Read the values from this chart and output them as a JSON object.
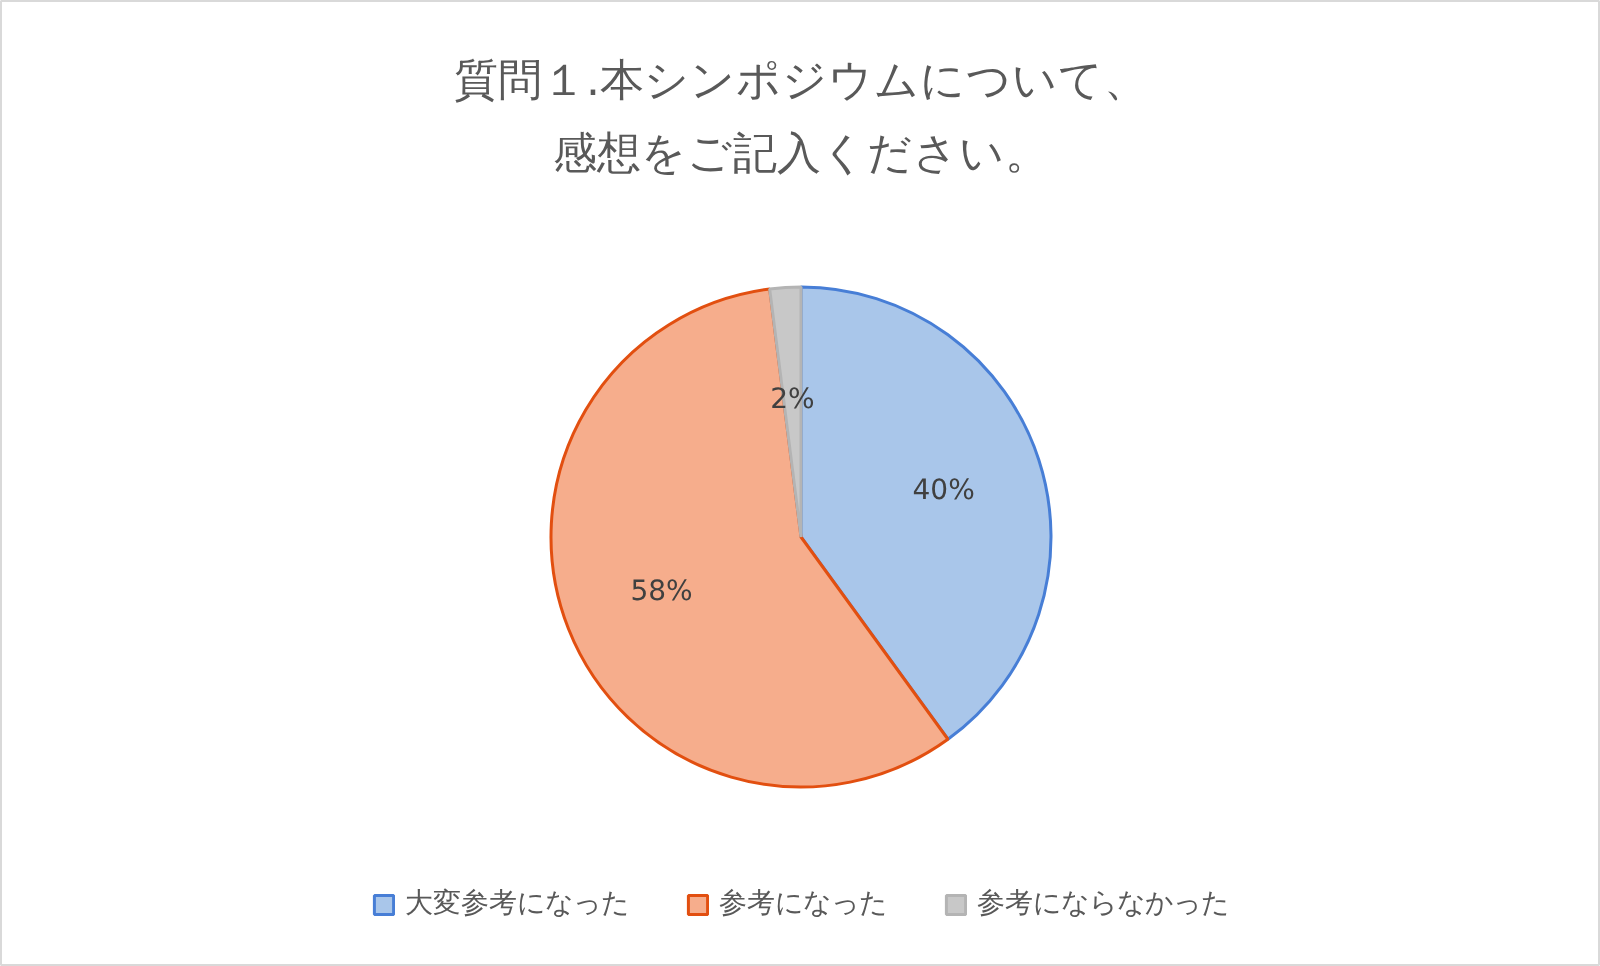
{
  "chart_data": {
    "type": "pie",
    "title": "質問１.本シンポジウムについて、感想をご記入ください。",
    "categories": [
      "大変参考になった",
      "参考になった",
      "参考にならなかった"
    ],
    "values": [
      40,
      58,
      2
    ],
    "colors": [
      "#a9c6ea",
      "#f6ad8c",
      "#c8c8c8"
    ],
    "value_labels": [
      "40%",
      "58%",
      "2%"
    ],
    "legend": "bottom"
  }
}
